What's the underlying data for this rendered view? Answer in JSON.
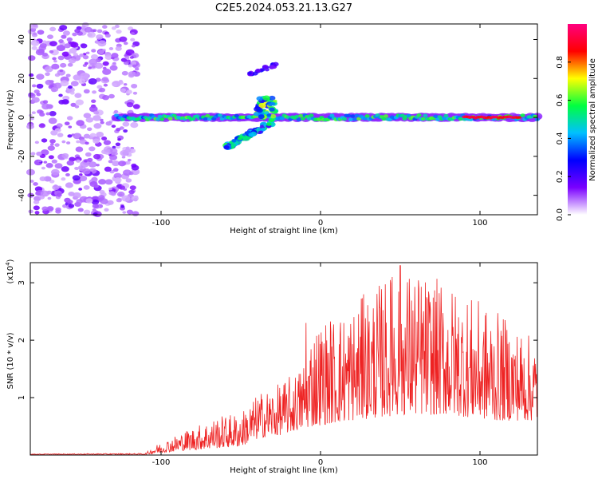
{
  "title": "C2E5.2024.053.21.13.G27",
  "chart_data": [
    {
      "type": "heatmap",
      "xlabel": "Height of straight line (km)",
      "ylabel": "Frequency (Hz)",
      "xlim": [
        -182,
        136
      ],
      "ylim": [
        -50,
        48
      ],
      "xticks": [
        -100,
        0,
        100
      ],
      "yticks": [
        -40,
        -20,
        0,
        20,
        40
      ],
      "colorbar": {
        "label": "Normalized spectral amplitude",
        "range": [
          0,
          1
        ],
        "ticks": [
          "0.0",
          "0.2",
          "0.4",
          "0.6",
          "0.8"
        ],
        "colors": [
          "#ffffff",
          "#7a00ff",
          "#0000ff",
          "#00c0ff",
          "#00ff40",
          "#ffff00",
          "#ff0000",
          "#ff0080"
        ]
      },
      "features": [
        {
          "kind": "noise-region",
          "x": [
            -182,
            -115
          ],
          "y": [
            -50,
            48
          ],
          "amplitude": 0.15
        },
        {
          "kind": "main-trace",
          "x": [
            -128,
            136
          ],
          "y_center": 0,
          "half_width": 3,
          "amplitude": 0.6
        },
        {
          "kind": "branch-upper",
          "x": [
            -45,
            -28
          ],
          "y": [
            22,
            27
          ],
          "amplitude": 0.2
        },
        {
          "kind": "branch-lower",
          "x": [
            -60,
            -30
          ],
          "y": [
            -16,
            -2
          ],
          "amplitude": 0.35
        },
        {
          "kind": "peak-cluster",
          "x": [
            -40,
            -28
          ],
          "y": [
            0,
            10
          ],
          "amplitude": 0.6
        },
        {
          "kind": "high-region",
          "x": [
            90,
            125
          ],
          "y": [
            0,
            0
          ],
          "amplitude": 0.85
        }
      ]
    },
    {
      "type": "line",
      "xlabel": "Height of straight line (km)",
      "ylabel": "SNR (10 * v/v)",
      "yscale_note": "(x10",
      "yscale_exp": "4",
      "xlim": [
        -182,
        136
      ],
      "ylim": [
        0,
        3.35
      ],
      "xticks": [
        -100,
        0,
        100
      ],
      "yticks": [
        1,
        2,
        3
      ],
      "color": "#ee2222",
      "envelope": [
        {
          "x": -182,
          "baseline": 0.01,
          "amp": 0.01
        },
        {
          "x": -110,
          "baseline": 0.01,
          "amp": 0.02
        },
        {
          "x": -103,
          "baseline": 0.03,
          "amp": 0.15
        },
        {
          "x": -85,
          "baseline": 0.08,
          "amp": 0.35
        },
        {
          "x": -65,
          "baseline": 0.12,
          "amp": 0.55
        },
        {
          "x": -50,
          "baseline": 0.15,
          "amp": 0.6
        },
        {
          "x": -38,
          "baseline": 0.3,
          "amp": 0.8
        },
        {
          "x": -25,
          "baseline": 0.35,
          "amp": 0.9
        },
        {
          "x": -12,
          "baseline": 0.45,
          "amp": 1.1
        },
        {
          "x": -5,
          "baseline": 0.5,
          "amp": 1.8
        },
        {
          "x": 20,
          "baseline": 0.6,
          "amp": 2.0
        },
        {
          "x": 50,
          "baseline": 0.7,
          "amp": 2.6
        },
        {
          "x": 80,
          "baseline": 0.7,
          "amp": 2.3
        },
        {
          "x": 110,
          "baseline": 0.6,
          "amp": 1.9
        },
        {
          "x": 136,
          "baseline": 0.6,
          "amp": 1.4
        }
      ],
      "peaks": [
        {
          "x": 50,
          "y": 3.3
        },
        {
          "x": 45,
          "y": 3.1
        },
        {
          "x": -9,
          "y": 2.3
        },
        {
          "x": 27,
          "y": 2.8
        }
      ]
    }
  ]
}
